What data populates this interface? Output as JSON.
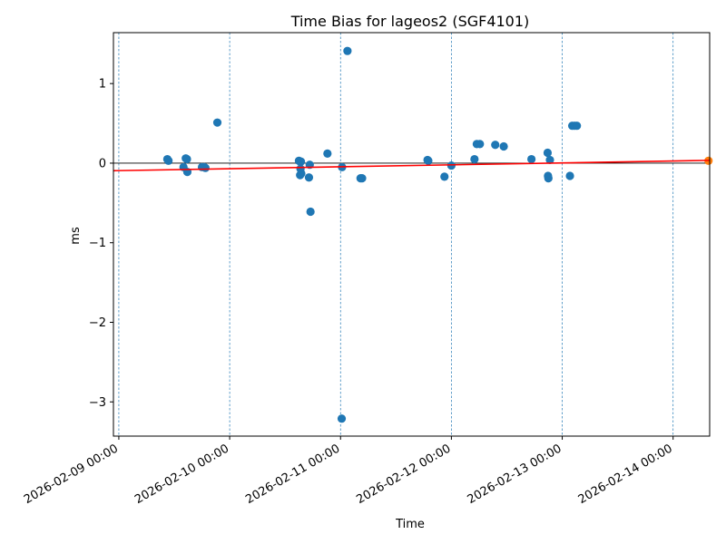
{
  "chart_data": {
    "type": "scatter",
    "title": "Time Bias for lageos2 (SGF4101)",
    "xlabel": "Time",
    "ylabel": "ms",
    "x_ticks": [
      {
        "x": "2026-02-09T00:00",
        "label": "2026-02-09 00:00"
      },
      {
        "x": "2026-02-10T00:00",
        "label": "2026-02-10 00:00"
      },
      {
        "x": "2026-02-11T00:00",
        "label": "2026-02-11 00:00"
      },
      {
        "x": "2026-02-12T00:00",
        "label": "2026-02-12 00:00"
      },
      {
        "x": "2026-02-13T00:00",
        "label": "2026-02-13 00:00"
      },
      {
        "x": "2026-02-14T00:00",
        "label": "2026-02-14 00:00"
      }
    ],
    "y_ticks": [
      {
        "y": 1,
        "label": "1"
      },
      {
        "y": 0,
        "label": "0"
      },
      {
        "y": -1,
        "label": "−1"
      },
      {
        "y": -2,
        "label": "−2"
      },
      {
        "y": -3,
        "label": "−3"
      }
    ],
    "xlim": [
      "2026-02-08T22:50",
      "2026-02-14T07:55"
    ],
    "ylim": [
      -3.43,
      1.64
    ],
    "grid": "vertical dashed lines at day boundaries",
    "zero_line": true,
    "series": [
      {
        "color": "#1f77b4",
        "points": [
          {
            "x": "2026-02-09T10:30",
            "y": 0.05
          },
          {
            "x": "2026-02-09T10:45",
            "y": 0.03
          },
          {
            "x": "2026-02-09T14:00",
            "y": -0.05
          },
          {
            "x": "2026-02-09T14:30",
            "y": 0.06
          },
          {
            "x": "2026-02-09T14:45",
            "y": 0.05
          },
          {
            "x": "2026-02-09T14:50",
            "y": -0.11
          },
          {
            "x": "2026-02-09T18:00",
            "y": -0.05
          },
          {
            "x": "2026-02-09T18:30",
            "y": -0.05
          },
          {
            "x": "2026-02-09T18:45",
            "y": -0.06
          },
          {
            "x": "2026-02-09T21:20",
            "y": 0.51
          },
          {
            "x": "2026-02-10T15:00",
            "y": 0.03
          },
          {
            "x": "2026-02-10T15:15",
            "y": 0.02
          },
          {
            "x": "2026-02-10T15:25",
            "y": 0.02
          },
          {
            "x": "2026-02-10T15:20",
            "y": -0.07
          },
          {
            "x": "2026-02-10T15:15",
            "y": -0.15
          },
          {
            "x": "2026-02-10T15:30",
            "y": -0.13
          },
          {
            "x": "2026-02-10T17:10",
            "y": -0.18
          },
          {
            "x": "2026-02-10T17:20",
            "y": -0.02
          },
          {
            "x": "2026-02-10T17:30",
            "y": -0.61
          },
          {
            "x": "2026-02-10T21:10",
            "y": 0.12
          },
          {
            "x": "2026-02-11T00:20",
            "y": -0.05
          },
          {
            "x": "2026-02-11T00:15",
            "y": -3.21
          },
          {
            "x": "2026-02-11T01:30",
            "y": 1.41
          },
          {
            "x": "2026-02-11T04:20",
            "y": -0.19
          },
          {
            "x": "2026-02-11T04:40",
            "y": -0.19
          },
          {
            "x": "2026-02-11T18:50",
            "y": 0.04
          },
          {
            "x": "2026-02-11T19:00",
            "y": 0.03
          },
          {
            "x": "2026-02-11T22:30",
            "y": -0.17
          },
          {
            "x": "2026-02-12T00:00",
            "y": -0.03
          },
          {
            "x": "2026-02-12T05:00",
            "y": 0.05
          },
          {
            "x": "2026-02-12T05:30",
            "y": 0.24
          },
          {
            "x": "2026-02-12T06:10",
            "y": 0.24
          },
          {
            "x": "2026-02-12T09:30",
            "y": 0.23
          },
          {
            "x": "2026-02-12T11:20",
            "y": 0.21
          },
          {
            "x": "2026-02-12T17:20",
            "y": 0.05
          },
          {
            "x": "2026-02-12T20:50",
            "y": 0.13
          },
          {
            "x": "2026-02-12T20:55",
            "y": -0.16
          },
          {
            "x": "2026-02-12T21:00",
            "y": -0.19
          },
          {
            "x": "2026-02-12T21:20",
            "y": 0.04
          },
          {
            "x": "2026-02-13T01:40",
            "y": -0.16
          },
          {
            "x": "2026-02-13T02:10",
            "y": 0.47
          },
          {
            "x": "2026-02-13T02:40",
            "y": 0.47
          },
          {
            "x": "2026-02-13T03:10",
            "y": 0.47
          }
        ]
      },
      {
        "color": "#ff7f0e",
        "points": [
          {
            "x": "2026-02-14T07:40",
            "y": 0.03
          }
        ]
      }
    ],
    "trend_line": {
      "color": "#ff0000",
      "start": {
        "x": "2026-02-08T22:50",
        "y": -0.095
      },
      "end": {
        "x": "2026-02-14T07:55",
        "y": 0.035
      }
    }
  }
}
